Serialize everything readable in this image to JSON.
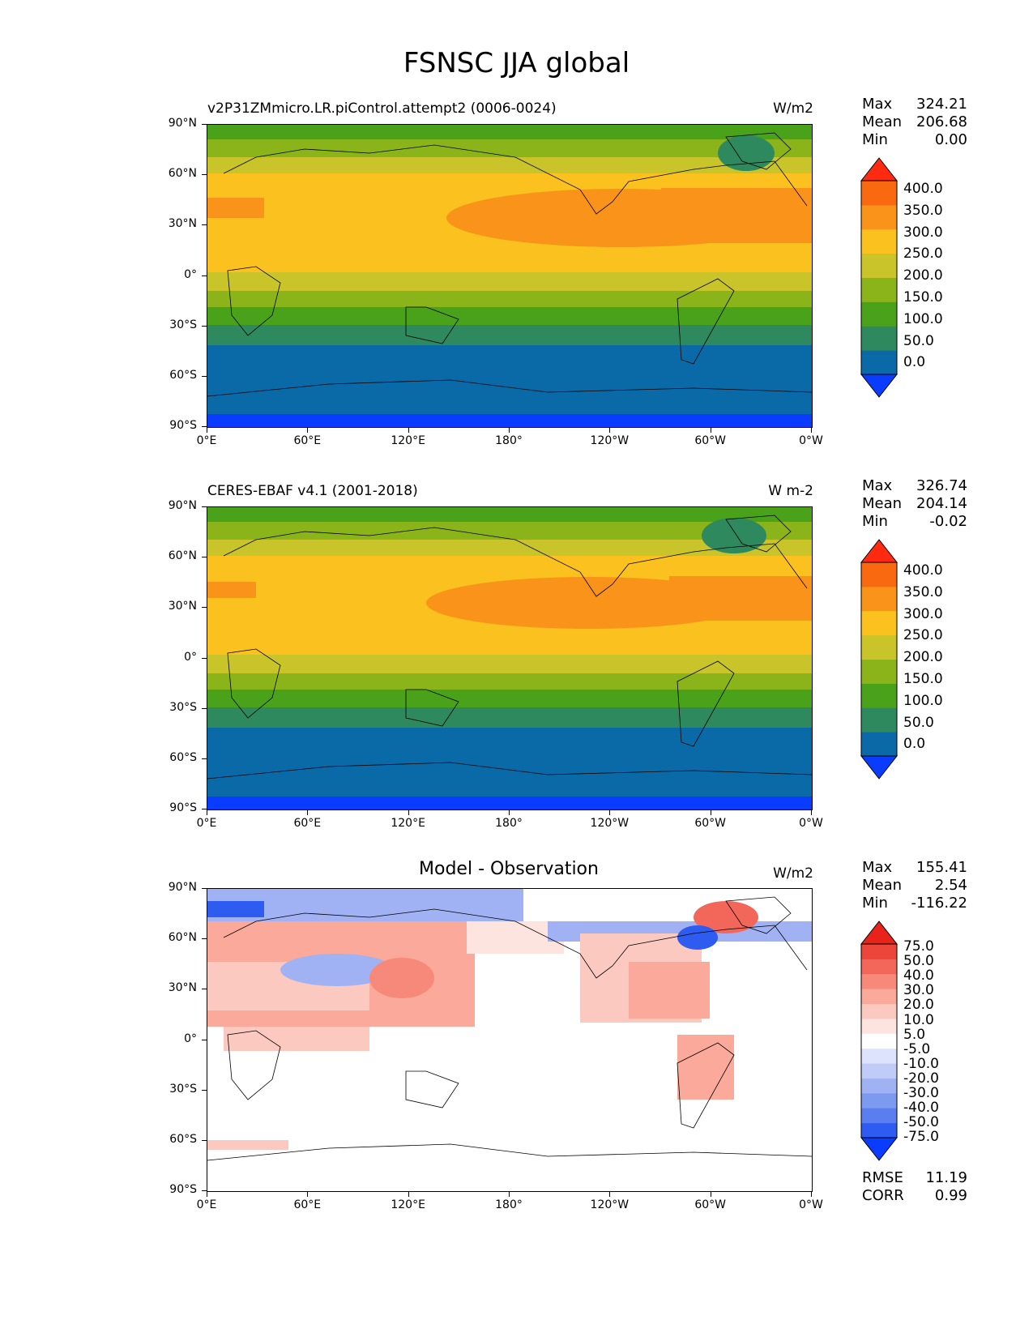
{
  "title": "FSNSC JJA global",
  "panels": [
    {
      "id": "model",
      "left_title": "v2P31ZMmicro.LR.piControl.attempt2 (0006-0024)",
      "units": "W/m2",
      "center_title": "",
      "stats": [
        {
          "label": "Max",
          "value": "324.21"
        },
        {
          "label": "Mean",
          "value": "206.68"
        },
        {
          "label": "Min",
          "value": "0.00"
        }
      ],
      "colorbar_labels": [
        "400.0",
        "350.0",
        "300.0",
        "250.0",
        "200.0",
        "150.0",
        "100.0",
        "50.0",
        "0.0"
      ]
    },
    {
      "id": "obs",
      "left_title": "CERES-EBAF v4.1 (2001-2018)",
      "units": "W m-2",
      "center_title": "",
      "stats": [
        {
          "label": "Max",
          "value": "326.74"
        },
        {
          "label": "Mean",
          "value": "204.14"
        },
        {
          "label": "Min",
          "value": "-0.02"
        }
      ],
      "colorbar_labels": [
        "400.0",
        "350.0",
        "300.0",
        "250.0",
        "200.0",
        "150.0",
        "100.0",
        "50.0",
        "0.0"
      ]
    },
    {
      "id": "diff",
      "left_title": "",
      "units": "W/m2",
      "center_title": "Model - Observation",
      "stats": [
        {
          "label": "Max",
          "value": "155.41"
        },
        {
          "label": "Mean",
          "value": "2.54"
        },
        {
          "label": "Min",
          "value": "-116.22"
        }
      ],
      "colorbar_labels": [
        "75.0",
        "50.0",
        "40.0",
        "30.0",
        "20.0",
        "10.0",
        "5.0",
        "-5.0",
        "-10.0",
        "-20.0",
        "-30.0",
        "-40.0",
        "-50.0",
        "-75.0"
      ],
      "metrics": [
        {
          "label": "RMSE",
          "value": "11.19"
        },
        {
          "label": "CORR",
          "value": "0.99"
        }
      ]
    }
  ],
  "axes": {
    "lat_labels": [
      "90°N",
      "60°N",
      "30°N",
      "0°",
      "30°S",
      "60°S",
      "90°S"
    ],
    "lon_labels": [
      "0°E",
      "60°E",
      "120°E",
      "180°",
      "120°W",
      "60°W",
      "0°W"
    ]
  },
  "colors": {
    "field_scale": [
      "#0a3cff",
      "#0a6aa8",
      "#2e8a5e",
      "#4aa11a",
      "#8ab41a",
      "#c8c42a",
      "#fbc11e",
      "#f9931a",
      "#f96a10",
      "#ff2a10"
    ],
    "diff_scale": [
      "#0a3cff",
      "#2e5cf0",
      "#5a7ef0",
      "#7e99f0",
      "#a1b2f4",
      "#c0cbf7",
      "#dde3fb",
      "#ffffff",
      "#fde4df",
      "#fcc9c0",
      "#faa99a",
      "#f7897a",
      "#f2675a",
      "#ec453a",
      "#e8241a"
    ]
  }
}
